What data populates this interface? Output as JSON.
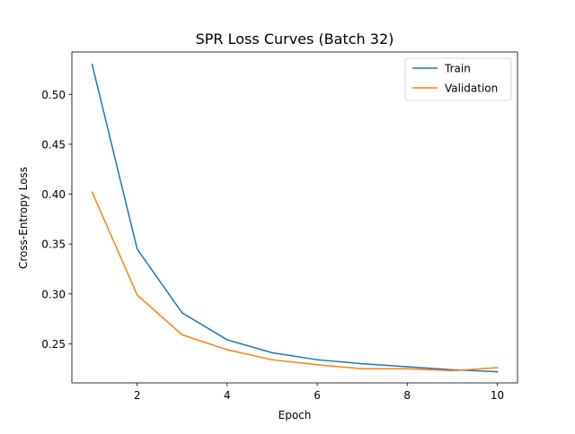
{
  "chart_data": {
    "type": "line",
    "title": "SPR Loss Curves (Batch 32)",
    "xlabel": "Epoch",
    "ylabel": "Cross-Entropy Loss",
    "x": [
      1,
      2,
      3,
      4,
      5,
      6,
      7,
      8,
      9,
      10
    ],
    "xlim": [
      0.55,
      10.45
    ],
    "ylim": [
      0.2108,
      0.5425
    ],
    "xticks": [
      2,
      4,
      6,
      8,
      10
    ],
    "xtick_labels": [
      "2",
      "4",
      "6",
      "8",
      "10"
    ],
    "yticks": [
      0.25,
      0.3,
      0.35,
      0.4,
      0.45,
      0.5
    ],
    "ytick_labels": [
      "0.25",
      "0.30",
      "0.35",
      "0.40",
      "0.45",
      "0.50"
    ],
    "grid": false,
    "legend_position": "top-right",
    "series": [
      {
        "name": "Train",
        "color": "#1f77b4",
        "values": [
          0.53,
          0.345,
          0.281,
          0.254,
          0.241,
          0.234,
          0.23,
          0.227,
          0.224,
          0.222
        ]
      },
      {
        "name": "Validation",
        "color": "#ff7f0e",
        "values": [
          0.402,
          0.299,
          0.259,
          0.244,
          0.234,
          0.229,
          0.225,
          0.225,
          0.223,
          0.226
        ]
      }
    ]
  }
}
